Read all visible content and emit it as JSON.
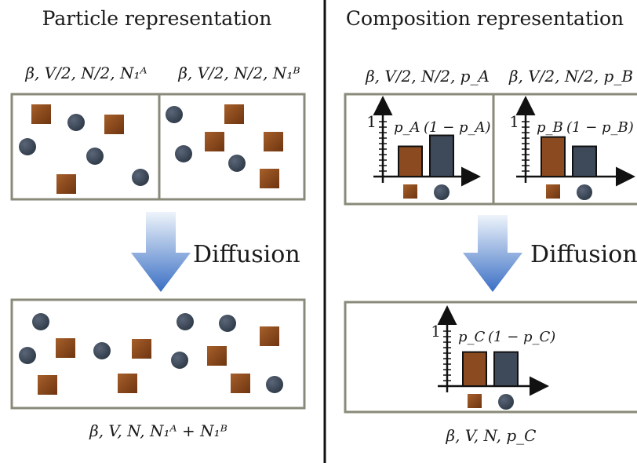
{
  "particle": {
    "title": "Particle representation",
    "left_box_label": "β, V/2, N/2, N₁ᴬ",
    "right_box_label": "β, V/2, N/2, N₁ᴮ",
    "arrow_label": "Diffusion",
    "bottom_label": "β, V, N, N₁ᴬ + N₁ᴮ"
  },
  "composition": {
    "title": "Composition representation",
    "left_box_label": "β, V/2, N/2, p_A",
    "right_box_label": "β, V/2, N/2, p_B",
    "arrow_label": "Diffusion",
    "bottom_label": "β, V, N, p_C",
    "hist_A": {
      "tick_one": "1",
      "bar1_label": "p_A",
      "bar2_label": "(1 − p_A)",
      "bar1": 0.55,
      "bar2": 0.75
    },
    "hist_B": {
      "tick_one": "1",
      "bar1_label": "p_B",
      "bar2_label": "(1 − p_B)",
      "bar1": 0.72,
      "bar2": 0.55
    },
    "hist_C": {
      "tick_one": "1",
      "bar1_label": "p_C",
      "bar2_label": "(1 − p_C)",
      "bar1": 0.62,
      "bar2": 0.62
    }
  },
  "colors": {
    "square": "#8b4a1f",
    "circle": "#3e4a5a",
    "box_border": "#8a8a7a",
    "arrow_top": "#e8f0fa",
    "arrow_bottom": "#3a6fc4",
    "bar_orange": "#8b4a1f",
    "bar_blue": "#3e4a5a"
  }
}
